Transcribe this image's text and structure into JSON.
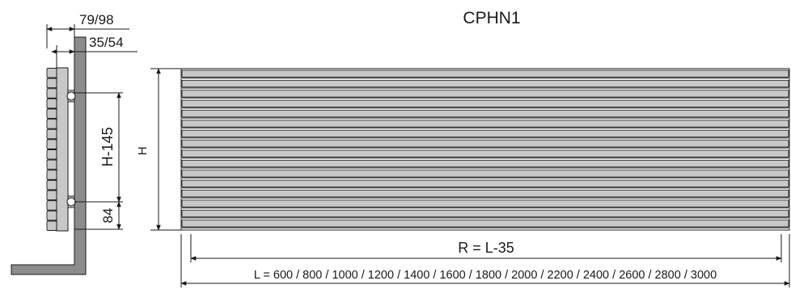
{
  "title": "CPHN1",
  "side_view": {
    "total_depth": "79/98",
    "bracket_depth": "35/54",
    "connection_spacing": "H-145",
    "bottom_offset": "84"
  },
  "front_view": {
    "height_label": "H",
    "tube_count": 16,
    "r_formula": "R = L-35",
    "length_options": "L = 600 / 800 / 1000 / 1200 / 1400 / 1600 / 1800 / 2000 / 2200 / 2400 / 2600 / 2800 / 3000"
  },
  "colors": {
    "line": "#1a1a1a",
    "wall": "#8c8c8c",
    "tube_fill": "#c8c8c8",
    "tube_shadow": "#555555"
  }
}
